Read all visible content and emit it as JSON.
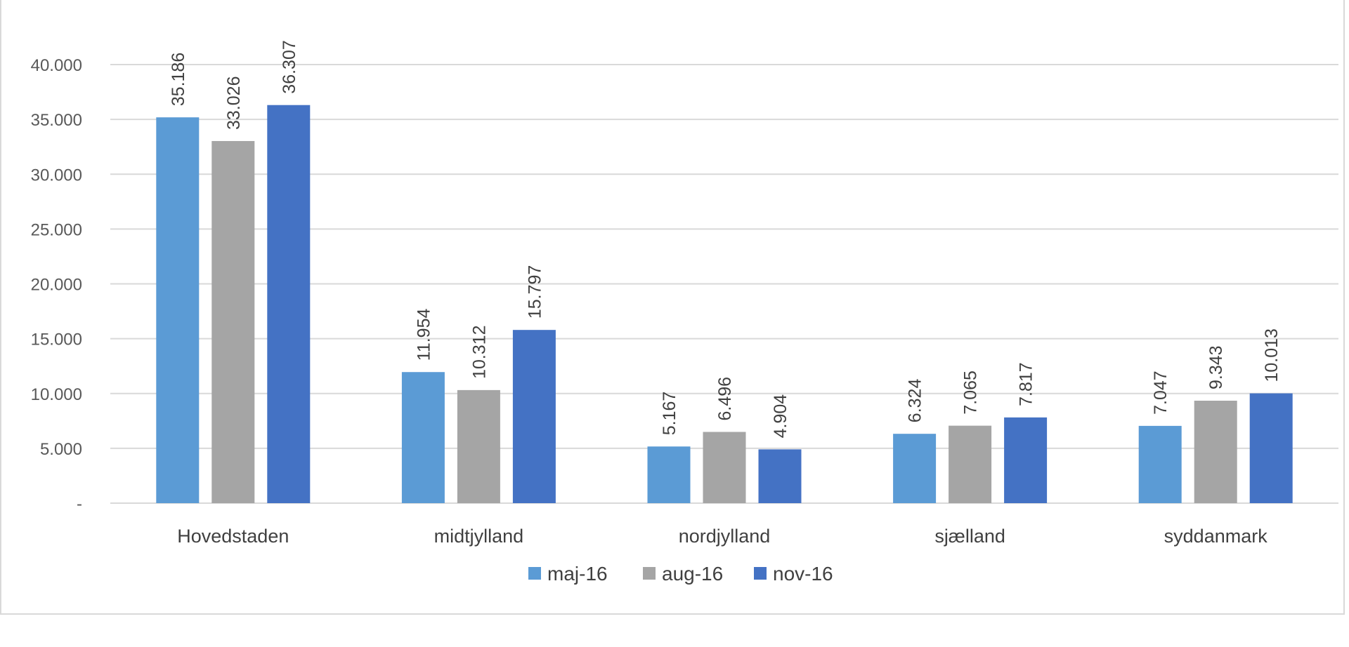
{
  "chart_data": {
    "type": "bar",
    "title": "",
    "xlabel": "",
    "ylabel": "",
    "ylim": [
      0,
      40000
    ],
    "yticks": [
      {
        "value": 0,
        "label": "-"
      },
      {
        "value": 5000,
        "label": "5.000"
      },
      {
        "value": 10000,
        "label": "10.000"
      },
      {
        "value": 15000,
        "label": "15.000"
      },
      {
        "value": 20000,
        "label": "20.000"
      },
      {
        "value": 25000,
        "label": "25.000"
      },
      {
        "value": 30000,
        "label": "30.000"
      },
      {
        "value": 35000,
        "label": "35.000"
      },
      {
        "value": 40000,
        "label": "40.000"
      }
    ],
    "grid": true,
    "legend_position": "bottom",
    "categories": [
      "Hovedstaden",
      "midtjylland",
      "nordjylland",
      "sjælland",
      "syddanmark"
    ],
    "series": [
      {
        "name": "maj-16",
        "color": "#5b9bd5",
        "values": [
          35186,
          11954,
          5167,
          6324,
          7047
        ],
        "labels": [
          "35.186",
          "11.954",
          "5.167",
          "6.324",
          "7.047"
        ]
      },
      {
        "name": "aug-16",
        "color": "#a5a5a5",
        "values": [
          33026,
          10312,
          6496,
          7065,
          9343
        ],
        "labels": [
          "33.026",
          "10.312",
          "6.496",
          "7.065",
          "9.343"
        ]
      },
      {
        "name": "nov-16",
        "color": "#4472c4",
        "values": [
          36307,
          15797,
          4904,
          7817,
          10013
        ],
        "labels": [
          "36.307",
          "15.797",
          "4.904",
          "7.817",
          "10.013"
        ]
      }
    ]
  }
}
